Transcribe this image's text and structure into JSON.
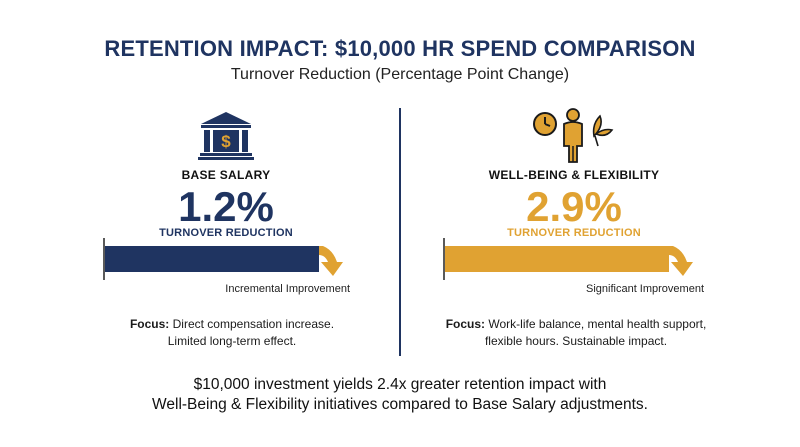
{
  "title": "RETENTION IMPACT: $10,000 HR SPEND COMPARISON",
  "subtitle": "Turnover Reduction (Percentage Point Change)",
  "colors": {
    "navy": "#1f3461",
    "gold": "#e0a232"
  },
  "chart_data": {
    "type": "bar",
    "orientation": "horizontal",
    "categories": [
      "BASE SALARY",
      "WELL-BEING & FLEXIBILITY"
    ],
    "values": [
      1.2,
      2.9
    ],
    "value_labels": [
      "1.2%",
      "2.9%"
    ],
    "metric_label": "TURNOVER REDUCTION",
    "colors": [
      "#1f3461",
      "#e0a232"
    ]
  },
  "left": {
    "icon": "bank-dollar-icon",
    "label": "BASE SALARY",
    "value": "1.2%",
    "metric": "TURNOVER REDUCTION",
    "note": "Incremental Improvement",
    "focus_label": "Focus:",
    "focus_line1": "Direct compensation increase.",
    "focus_line2": "Limited long-term effect."
  },
  "right": {
    "icon": "work-life-balance-icon",
    "label": "WELL-BEING & FLEXIBILITY",
    "value": "2.9%",
    "metric": "TURNOVER REDUCTION",
    "note": "Significant Improvement",
    "focus_label": "Focus:",
    "focus_line1": "Work-life balance, mental health support,",
    "focus_line2": "flexible hours. Sustainable impact."
  },
  "summary": {
    "line1": "$10,000 investment yields 2.4x greater retention impact with",
    "line2": "Well-Being & Flexibility initiatives compared to Base Salary adjustments."
  }
}
